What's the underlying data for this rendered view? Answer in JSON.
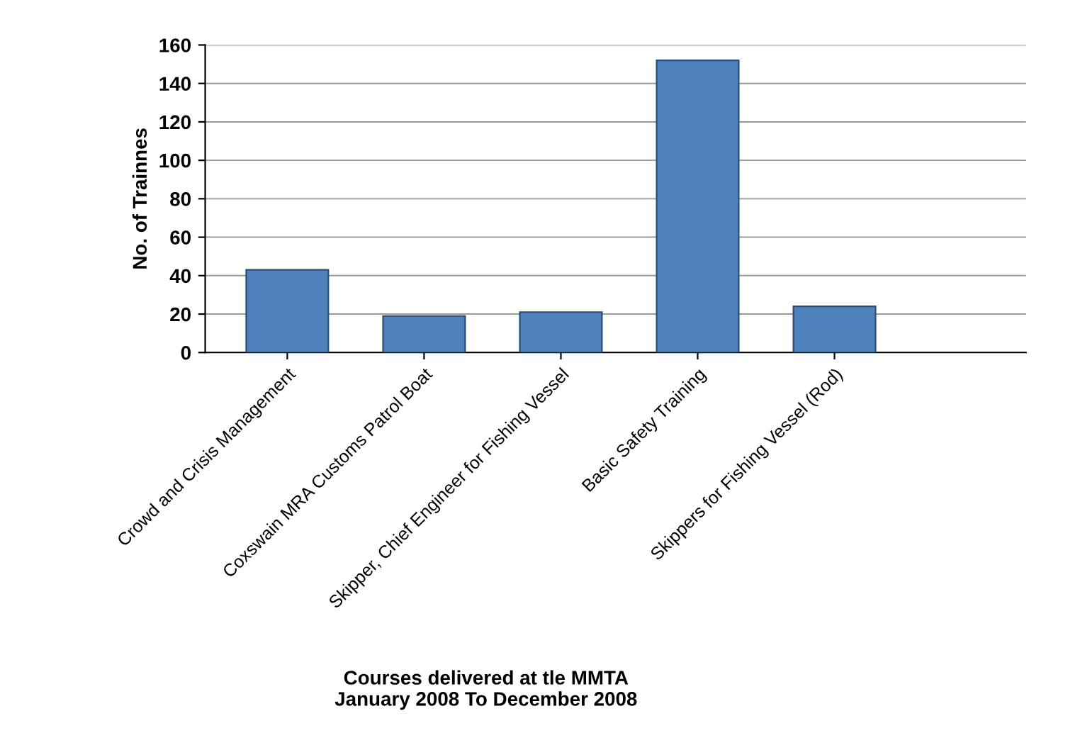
{
  "chart_data": {
    "type": "bar",
    "categories": [
      "Crowd and Crisis Management",
      "Coxswain MRA Customs Patrol Boat",
      "Skipper, Chief Engineer for Fishing Vessel",
      "Basic Safety Training",
      "Skippers for Fishing Vessel (Rod)"
    ],
    "values": [
      43,
      19,
      21,
      152,
      24
    ],
    "color": "#4f81bd",
    "ylabel": "No. of Trainnes",
    "xlabel": "Courses delivered at tle MMTA\nJanuary 2008 To December 2008",
    "ylim": [
      0,
      160
    ],
    "yticks": [
      0,
      20,
      40,
      60,
      80,
      100,
      120,
      140,
      160
    ],
    "grid": "y",
    "legend": false
  }
}
